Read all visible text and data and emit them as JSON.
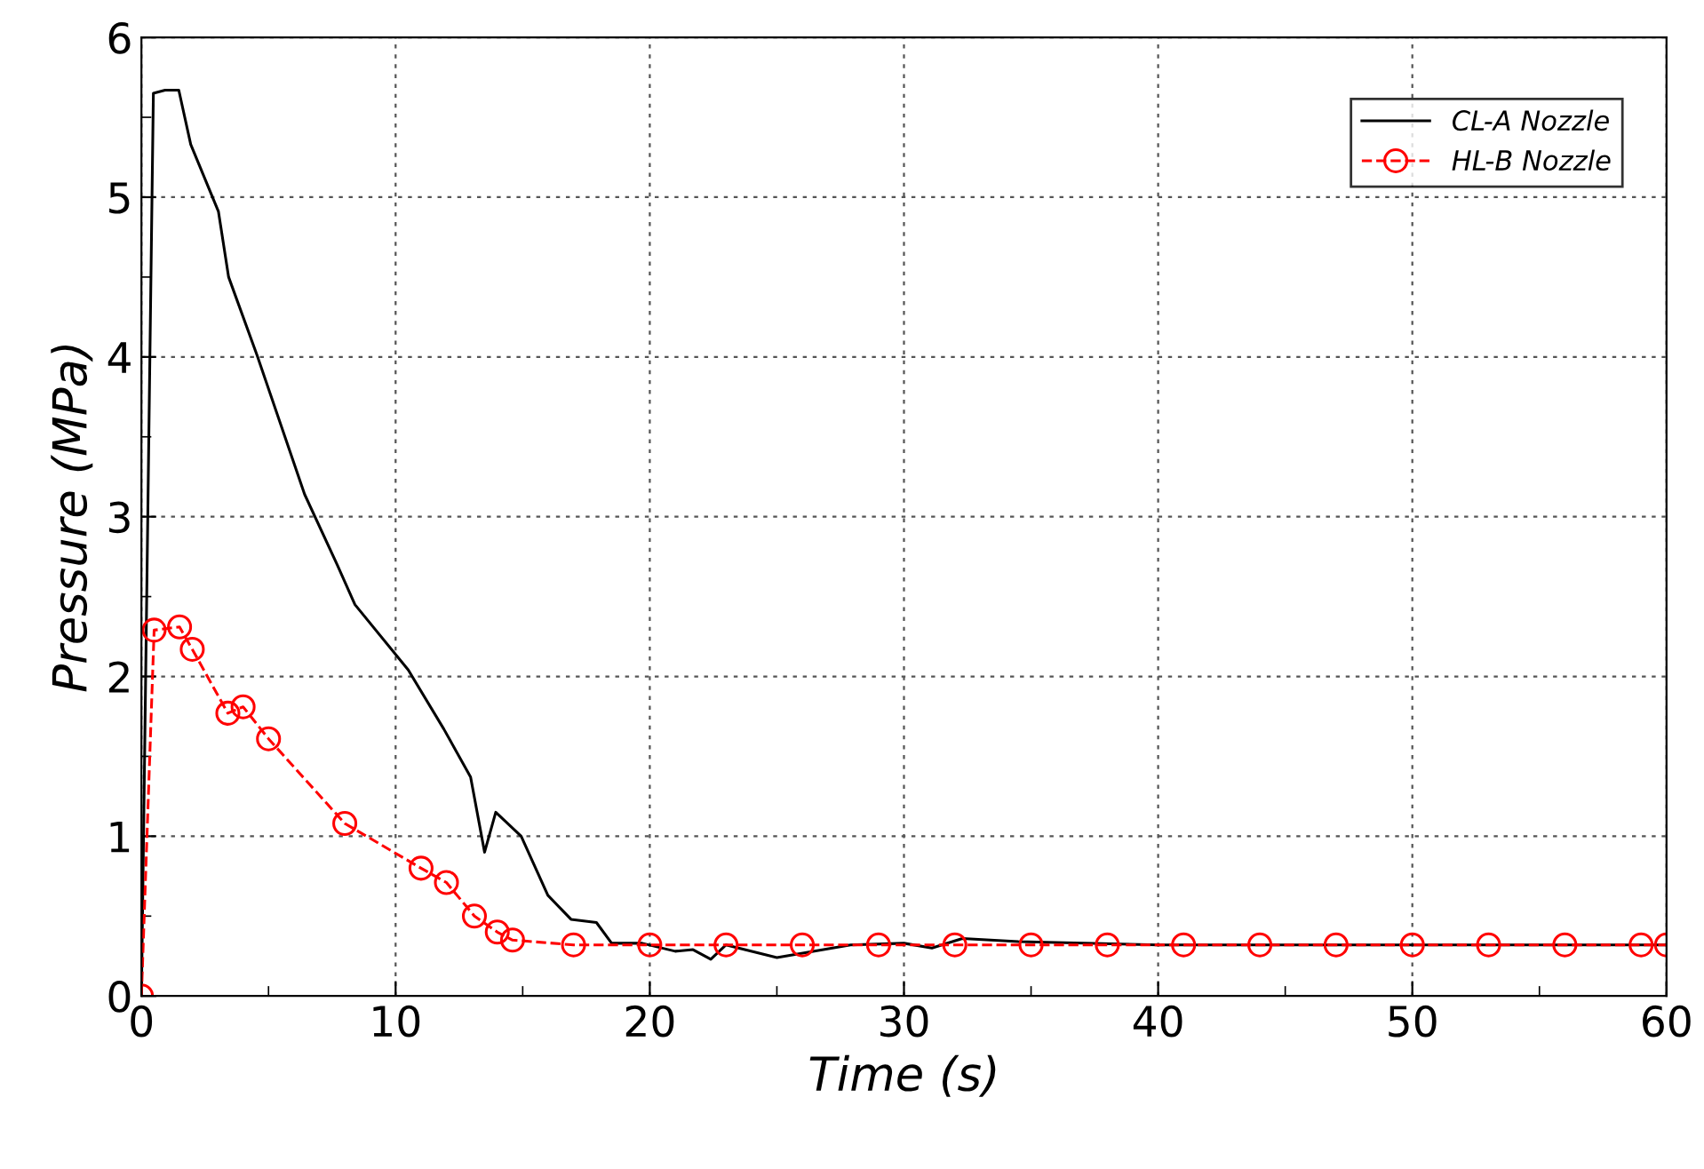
{
  "chart_data": {
    "type": "line",
    "xlabel": "Time (s)",
    "ylabel": "Pressure (MPa)",
    "xlim": [
      0,
      60
    ],
    "ylim": [
      0,
      6
    ],
    "xticks": [
      0,
      10,
      20,
      30,
      40,
      50,
      60
    ],
    "yticks": [
      0,
      1,
      2,
      3,
      4,
      5,
      6
    ],
    "grid": true,
    "legend": "top right",
    "series": [
      {
        "name": "CL-A Nozzle",
        "color": "#000000",
        "line_style": "solid",
        "marker": "none",
        "x": [
          0,
          0.47,
          0.93,
          1.47,
          1.94,
          3.03,
          3.43,
          4.55,
          6.42,
          7.7,
          8.4,
          10.5,
          11.9,
          12.95,
          13.5,
          13.94,
          14.94,
          15.99,
          16.9,
          17.9,
          18.5,
          19.7,
          21,
          21.7,
          22.4,
          23,
          25,
          27.9,
          30,
          31.1,
          32.3,
          34.5,
          40,
          50,
          60
        ],
        "values": [
          0,
          5.65,
          5.67,
          5.67,
          5.33,
          4.91,
          4.5,
          4.01,
          3.14,
          2.7,
          2.45,
          2.04,
          1.67,
          1.37,
          0.9,
          1.15,
          1.0,
          0.63,
          0.48,
          0.46,
          0.33,
          0.33,
          0.28,
          0.29,
          0.23,
          0.32,
          0.24,
          0.32,
          0.33,
          0.3,
          0.36,
          0.34,
          0.32,
          0.32,
          0.32
        ]
      },
      {
        "name": "HL-B Nozzle",
        "color": "#ff0000",
        "line_style": "dashed",
        "marker": "circle",
        "x": [
          0,
          0.5,
          1.5,
          2,
          3.4,
          4,
          5,
          8,
          11,
          12,
          13.1,
          14,
          14.6,
          17,
          20,
          23,
          26,
          29,
          32,
          35,
          38,
          41,
          44,
          47,
          50,
          53,
          56,
          59,
          60
        ],
        "values": [
          0,
          2.29,
          2.31,
          2.17,
          1.77,
          1.81,
          1.61,
          1.08,
          0.8,
          0.71,
          0.5,
          0.4,
          0.35,
          0.32,
          0.32,
          0.32,
          0.32,
          0.32,
          0.32,
          0.32,
          0.32,
          0.32,
          0.32,
          0.32,
          0.32,
          0.32,
          0.32,
          0.32,
          0.32
        ]
      }
    ]
  }
}
